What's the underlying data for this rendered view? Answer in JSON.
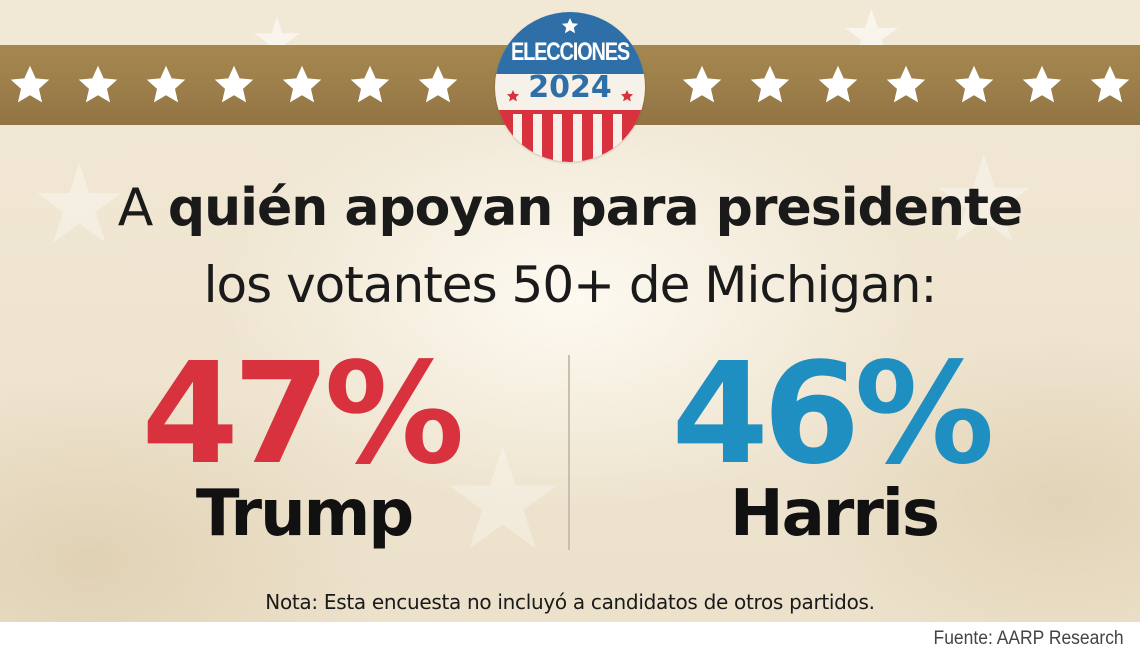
{
  "badge": {
    "line1": "ELECCIONES",
    "line2": "2024",
    "colors": {
      "red": "#d9323f",
      "blue": "#2f6fa8",
      "cream": "#f6f2ea"
    }
  },
  "banner": {
    "color": "#9c7f4a",
    "star_icon": "star-icon",
    "left_star_count": 7,
    "right_star_count": 7
  },
  "headline": {
    "line1_prefix": "A ",
    "line1_bold": "quién apoyan para presidente",
    "line2": "los votantes 50+ de Michigan:"
  },
  "results": [
    {
      "candidate": "Trump",
      "percent_label": "47%",
      "percent": 47,
      "color": "#d9323f"
    },
    {
      "candidate": "Harris",
      "percent_label": "46%",
      "percent": 46,
      "color": "#1f8fc2"
    }
  ],
  "note": "Nota: Esta encuesta no incluyó a candidatos de otros partidos.",
  "source": "Fuente: AARP Research"
}
